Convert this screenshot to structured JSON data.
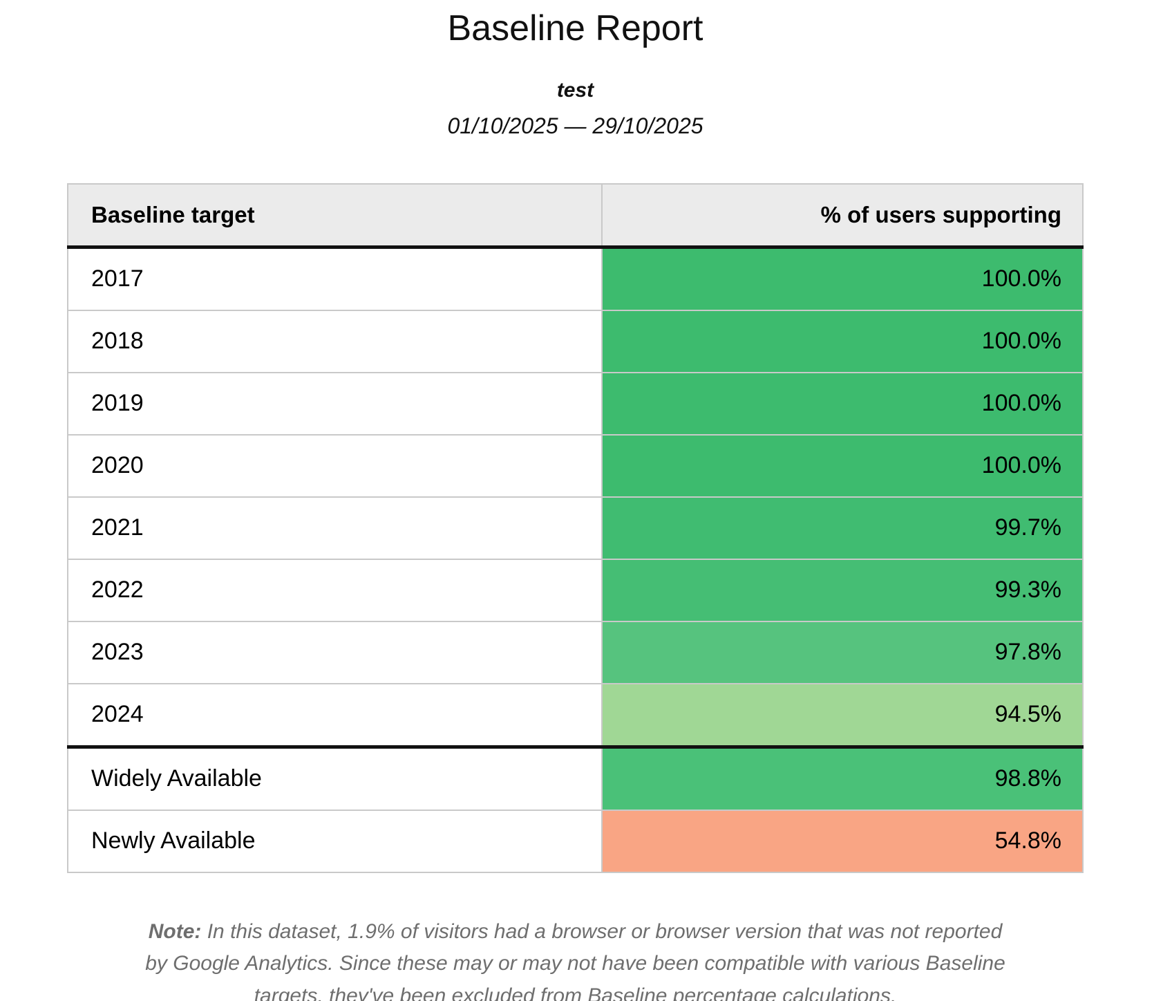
{
  "report": {
    "title": "Baseline Report",
    "subtitle": "test",
    "date_range": "01/10/2025 — 29/10/2025"
  },
  "table": {
    "columns": [
      "Baseline target",
      "% of users supporting"
    ],
    "rows": [
      {
        "target": "2017",
        "value": "100.0%",
        "color": "#3dbb6e",
        "section_start": false
      },
      {
        "target": "2018",
        "value": "100.0%",
        "color": "#3dbb6e",
        "section_start": false
      },
      {
        "target": "2019",
        "value": "100.0%",
        "color": "#3dbb6e",
        "section_start": false
      },
      {
        "target": "2020",
        "value": "100.0%",
        "color": "#3dbb6e",
        "section_start": false
      },
      {
        "target": "2021",
        "value": "99.7%",
        "color": "#40bc71",
        "section_start": false
      },
      {
        "target": "2022",
        "value": "99.3%",
        "color": "#45be74",
        "section_start": false
      },
      {
        "target": "2023",
        "value": "97.8%",
        "color": "#56c37e",
        "section_start": false
      },
      {
        "target": "2024",
        "value": "94.5%",
        "color": "#a0d795",
        "section_start": false
      },
      {
        "target": "Widely Available",
        "value": "98.8%",
        "color": "#4ac178",
        "section_start": true
      },
      {
        "target": "Newly Available",
        "value": "54.8%",
        "color": "#f9a584",
        "section_start": false
      }
    ]
  },
  "note": {
    "label": "Note:",
    "text": "In this dataset, 1.9% of visitors had a browser or browser version that was not reported by Google Analytics. Since these may or may not have been compatible with various Baseline targets, they've been excluded from Baseline percentage calculations."
  },
  "colors": {
    "header_bg": "#ebebeb",
    "grid_border": "#c9c9c9",
    "section_border": "#111111",
    "note_text": "#6e6e6e",
    "green_full": "#3dbb6e",
    "green_light": "#a0d795",
    "salmon_low": "#f9a584"
  }
}
